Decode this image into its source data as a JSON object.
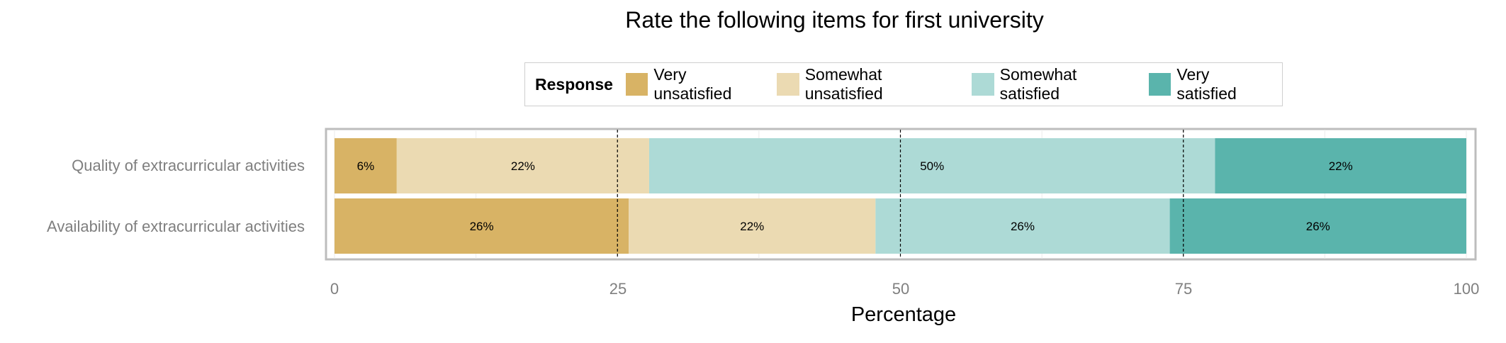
{
  "chart_data": {
    "type": "bar",
    "orientation": "horizontal",
    "stacked": true,
    "title": "Rate the following items for first university",
    "xlabel": "Percentage",
    "ylabel": "",
    "xlim": [
      0,
      100
    ],
    "xticks": [
      "0",
      "25",
      "50",
      "75",
      "100"
    ],
    "categories": [
      "Quality of extracurricular activities",
      "Availability of extracurricular activities"
    ],
    "legend": {
      "title": "Response",
      "placement": "top"
    },
    "series": [
      {
        "name": "Very unsatisfied",
        "color": "#D8B365",
        "values": [
          5.5,
          26
        ],
        "labels": [
          "6%",
          "26%"
        ]
      },
      {
        "name": "Somewhat unsatisfied",
        "color": "#EBDAB2",
        "values": [
          22.3,
          21.8
        ],
        "labels": [
          "22%",
          "22%"
        ]
      },
      {
        "name": "Somewhat satisfied",
        "color": "#ADDAD6",
        "values": [
          50,
          26
        ],
        "labels": [
          "50%",
          "26%"
        ]
      },
      {
        "name": "Very satisfied",
        "color": "#5AB4AC",
        "values": [
          22.2,
          26.2
        ],
        "labels": [
          "22%",
          "26%"
        ]
      }
    ],
    "reference_lines": [
      25,
      50,
      75
    ],
    "grid": true
  }
}
